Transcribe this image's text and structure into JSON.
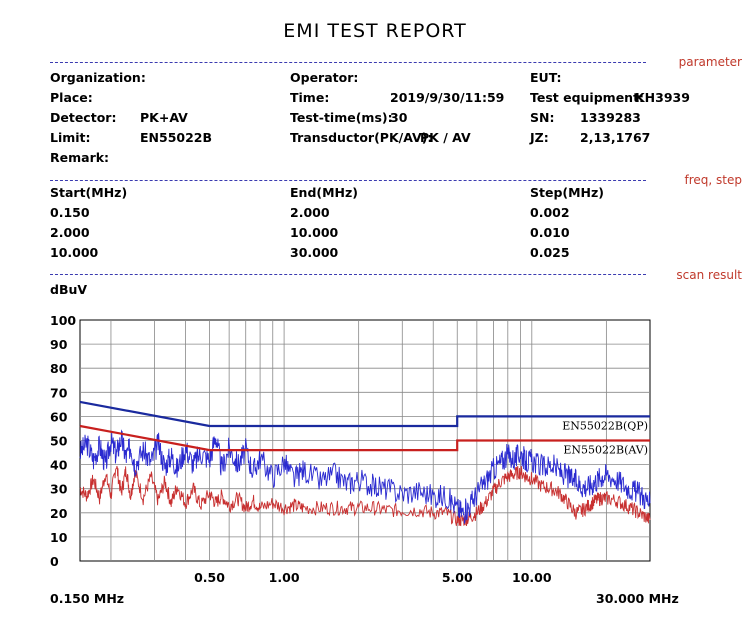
{
  "title": "EMI TEST REPORT",
  "sections": {
    "parameter": "parameter",
    "freq_step": "freq, step",
    "scan_result": "scan result"
  },
  "params": {
    "organization_label": "Organization:",
    "place_label": "Place:",
    "detector_label": "Detector:",
    "detector_value": "PK+AV",
    "limit_label": "Limit:",
    "limit_value": "EN55022B",
    "remark_label": "Remark:",
    "operator_label": "Operator:",
    "time_label": "Time:",
    "time_value": "2019/9/30/11:59",
    "testtime_label": "Test-time(ms):",
    "testtime_value": "30",
    "transductor_label": "Transductor(PK/AV):",
    "transductor_value": "PK  /  AV",
    "eut_label": "EUT:",
    "equipment_label": "Test equipment:",
    "equipment_value": "KH3939",
    "sn_label": "SN:",
    "sn_value": "1339283",
    "jz_label": "JZ:",
    "jz_value": "2,13,1767"
  },
  "freq_table": {
    "headers": [
      "Start(MHz)",
      "End(MHz)",
      "Step(MHz)"
    ],
    "rows": [
      [
        "0.150",
        "2.000",
        "0.002"
      ],
      [
        "2.000",
        "10.000",
        "0.010"
      ],
      [
        "10.000",
        "30.000",
        "0.025"
      ]
    ]
  },
  "colors": {
    "qp": "#1a2a9e",
    "av": "#c8201e",
    "pk_trace": "#2a2ad0",
    "av_trace": "#c83030",
    "grid": "#888888"
  },
  "chart_data": {
    "type": "line",
    "ylabel": "dBuV",
    "xscale": "log",
    "xlim": [
      0.15,
      30
    ],
    "ylim": [
      0,
      100
    ],
    "yticks": [
      0,
      10,
      20,
      30,
      40,
      50,
      60,
      70,
      80,
      90,
      100
    ],
    "xticks": [
      {
        "value": 0.5,
        "label": "0.50"
      },
      {
        "value": 1.0,
        "label": "1.00"
      },
      {
        "value": 5.0,
        "label": "5.00"
      },
      {
        "value": 10.0,
        "label": "10.00"
      }
    ],
    "x_start_label": "0.150 MHz",
    "x_end_label": "30.000 MHz",
    "limits": [
      {
        "name": "EN55022B(QP)",
        "x": [
          0.15,
          0.5,
          0.5,
          5,
          5,
          30
        ],
        "y": [
          66,
          56,
          56,
          56,
          60,
          60
        ]
      },
      {
        "name": "EN55022B(AV)",
        "x": [
          0.15,
          0.5,
          0.5,
          5,
          5,
          30
        ],
        "y": [
          56,
          46,
          46,
          46,
          50,
          50
        ]
      }
    ],
    "series": [
      {
        "name": "PK",
        "x": [
          0.15,
          0.16,
          0.17,
          0.18,
          0.19,
          0.2,
          0.21,
          0.22,
          0.23,
          0.24,
          0.25,
          0.27,
          0.29,
          0.31,
          0.33,
          0.35,
          0.37,
          0.4,
          0.43,
          0.46,
          0.5,
          0.53,
          0.56,
          0.6,
          0.65,
          0.7,
          0.75,
          0.8,
          0.9,
          1.0,
          1.1,
          1.2,
          1.4,
          1.6,
          1.8,
          2.0,
          2.3,
          2.6,
          3.0,
          3.5,
          4.0,
          4.5,
          5.0,
          5.3,
          5.6,
          6.0,
          6.5,
          7.0,
          7.5,
          8.0,
          8.5,
          9.0,
          9.5,
          10.0,
          11.0,
          12.0,
          13.0,
          14.0,
          15.0,
          16.0,
          17.0,
          18.0,
          19.0,
          20.0,
          22.0,
          24.0,
          26.0,
          28.0,
          30.0
        ],
        "y": [
          45,
          49,
          42,
          48,
          40,
          50,
          44,
          51,
          43,
          48,
          40,
          46,
          41,
          49,
          39,
          44,
          38,
          47,
          40,
          45,
          42,
          52,
          38,
          47,
          40,
          46,
          37,
          43,
          35,
          41,
          34,
          38,
          33,
          36,
          32,
          34,
          31,
          30,
          28,
          29,
          27,
          27,
          22,
          20,
          23,
          28,
          33,
          38,
          41,
          44,
          42,
          45,
          41,
          42,
          39,
          40,
          37,
          35,
          33,
          31,
          31,
          33,
          35,
          36,
          34,
          31,
          29,
          27,
          24
        ]
      },
      {
        "name": "AV",
        "x": [
          0.15,
          0.16,
          0.17,
          0.18,
          0.19,
          0.2,
          0.21,
          0.22,
          0.23,
          0.24,
          0.25,
          0.27,
          0.29,
          0.31,
          0.33,
          0.35,
          0.37,
          0.4,
          0.43,
          0.46,
          0.5,
          0.53,
          0.56,
          0.6,
          0.65,
          0.7,
          0.75,
          0.8,
          0.9,
          1.0,
          1.1,
          1.2,
          1.4,
          1.6,
          1.8,
          2.0,
          2.3,
          2.6,
          3.0,
          3.5,
          4.0,
          4.5,
          5.0,
          5.3,
          5.6,
          6.0,
          6.5,
          7.0,
          7.5,
          8.0,
          8.5,
          9.0,
          9.5,
          10.0,
          11.0,
          12.0,
          13.0,
          14.0,
          15.0,
          16.0,
          17.0,
          18.0,
          19.0,
          20.0,
          22.0,
          24.0,
          26.0,
          28.0,
          30.0
        ],
        "y": [
          30,
          27,
          34,
          26,
          36,
          27,
          40,
          28,
          38,
          27,
          37,
          26,
          35,
          25,
          33,
          24,
          31,
          24,
          30,
          23,
          28,
          24,
          27,
          23,
          26,
          22,
          25,
          22,
          24,
          22,
          23,
          22,
          22,
          22,
          22,
          22,
          22,
          21,
          21,
          21,
          20,
          20,
          17,
          17,
          18,
          20,
          24,
          29,
          33,
          35,
          36,
          37,
          35,
          34,
          31,
          30,
          28,
          24,
          20,
          21,
          23,
          25,
          26,
          26,
          25,
          23,
          21,
          19,
          17
        ]
      }
    ]
  }
}
